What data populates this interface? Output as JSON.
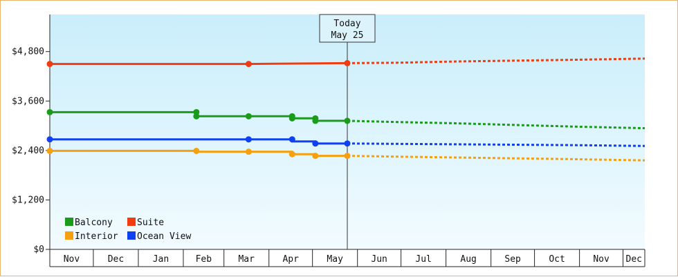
{
  "chart_data": {
    "type": "line",
    "title": "",
    "xlabel": "",
    "ylabel": "",
    "y_ticks": [
      "$0",
      "$1,200",
      "$2,400",
      "$3,600",
      "$4,800"
    ],
    "y_tick_values": [
      0,
      1200,
      2400,
      3600,
      4800
    ],
    "ylim": [
      0,
      5700
    ],
    "months": [
      "Nov",
      "Dec",
      "Jan",
      "Feb",
      "Mar",
      "Apr",
      "May",
      "Jun",
      "Jul",
      "Aug",
      "Sep",
      "Oct",
      "Nov",
      "Dec"
    ],
    "month_starts": [
      0,
      30,
      61,
      92,
      120,
      151,
      181,
      212,
      242,
      273,
      304,
      334,
      365,
      395
    ],
    "x_end": 410,
    "today": {
      "line1": "Today",
      "line2": "May 25",
      "day": 205
    },
    "grid": false,
    "legend_placement": "bottom-left",
    "series": [
      {
        "name": "Balcony",
        "color": "#1a9c1a",
        "history": [
          [
            0,
            3330
          ],
          [
            101,
            3330
          ],
          [
            101,
            3230
          ],
          [
            137,
            3230
          ],
          [
            137,
            3230
          ],
          [
            167,
            3230
          ],
          [
            167,
            3180
          ],
          [
            183,
            3180
          ],
          [
            183,
            3120
          ],
          [
            205,
            3120
          ]
        ],
        "points": [
          [
            0,
            3330
          ],
          [
            101,
            3330
          ],
          [
            101,
            3230
          ],
          [
            137,
            3230
          ],
          [
            167,
            3230
          ],
          [
            167,
            3180
          ],
          [
            183,
            3180
          ],
          [
            183,
            3120
          ],
          [
            205,
            3120
          ]
        ],
        "forecast": [
          [
            205,
            3120
          ],
          [
            240,
            3090
          ],
          [
            280,
            3060
          ],
          [
            320,
            3020
          ],
          [
            360,
            2980
          ],
          [
            410,
            2940
          ]
        ]
      },
      {
        "name": "Suite",
        "color": "#f03c10",
        "history": [
          [
            0,
            4500
          ],
          [
            137,
            4500
          ],
          [
            205,
            4520
          ]
        ],
        "points": [
          [
            0,
            4500
          ],
          [
            137,
            4500
          ],
          [
            205,
            4520
          ]
        ],
        "forecast": [
          [
            205,
            4520
          ],
          [
            240,
            4530
          ],
          [
            280,
            4560
          ],
          [
            320,
            4580
          ],
          [
            360,
            4600
          ],
          [
            410,
            4630
          ]
        ]
      },
      {
        "name": "Interior",
        "color": "#f5a010",
        "history": [
          [
            0,
            2390
          ],
          [
            101,
            2390
          ],
          [
            101,
            2370
          ],
          [
            137,
            2370
          ],
          [
            167,
            2370
          ],
          [
            167,
            2310
          ],
          [
            183,
            2310
          ],
          [
            183,
            2270
          ],
          [
            205,
            2270
          ]
        ],
        "points": [
          [
            0,
            2390
          ],
          [
            101,
            2390
          ],
          [
            137,
            2370
          ],
          [
            167,
            2310
          ],
          [
            183,
            2270
          ],
          [
            205,
            2270
          ]
        ],
        "forecast": [
          [
            205,
            2270
          ],
          [
            240,
            2250
          ],
          [
            280,
            2230
          ],
          [
            320,
            2210
          ],
          [
            360,
            2190
          ],
          [
            410,
            2160
          ]
        ]
      },
      {
        "name": "Ocean View",
        "color": "#1040f0",
        "history": [
          [
            0,
            2670
          ],
          [
            137,
            2670
          ],
          [
            167,
            2670
          ],
          [
            167,
            2620
          ],
          [
            183,
            2620
          ],
          [
            183,
            2570
          ],
          [
            205,
            2570
          ]
        ],
        "points": [
          [
            0,
            2670
          ],
          [
            137,
            2670
          ],
          [
            167,
            2670
          ],
          [
            183,
            2570
          ],
          [
            205,
            2570
          ]
        ],
        "forecast": [
          [
            205,
            2570
          ],
          [
            240,
            2560
          ],
          [
            280,
            2550
          ],
          [
            320,
            2540
          ],
          [
            360,
            2530
          ],
          [
            410,
            2510
          ]
        ]
      }
    ],
    "legend": [
      {
        "name": "Balcony",
        "color": "#1a9c1a"
      },
      {
        "name": "Suite",
        "color": "#f03c10"
      },
      {
        "name": "Interior",
        "color": "#f5a010"
      },
      {
        "name": "Ocean View",
        "color": "#1040f0"
      }
    ],
    "colors": {
      "plot_top": "#c9eefb",
      "plot_bottom": "#f2fbff",
      "frame_border": "#e8b46c",
      "axis": "#222222"
    }
  }
}
